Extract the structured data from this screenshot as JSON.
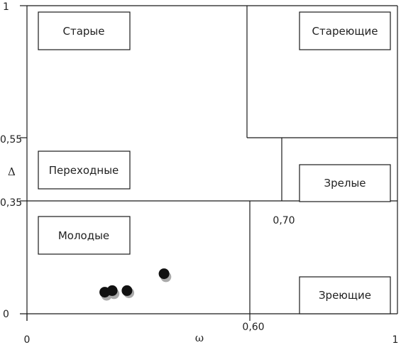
{
  "chart_data": {
    "type": "scatter",
    "title": "",
    "xlabel": "ω",
    "ylabel": "Δ",
    "xlim": [
      0,
      1
    ],
    "ylim": [
      0,
      1
    ],
    "x_ticks": [
      {
        "value": 0,
        "label": "0"
      },
      {
        "value": 0.6,
        "label": "0,60"
      },
      {
        "value": 1,
        "label": "1"
      }
    ],
    "y_ticks": [
      {
        "value": 0,
        "label": "0"
      },
      {
        "value": 0.35,
        "label": "0,35"
      },
      {
        "value": 0.55,
        "label": "0,55"
      },
      {
        "value": 1,
        "label": "1"
      }
    ],
    "threshold_annotations": [
      {
        "label": "0,70"
      }
    ],
    "regions": [
      {
        "label": "Старые"
      },
      {
        "label": "Стареющие"
      },
      {
        "label": "Переходные"
      },
      {
        "label": "Зрелые"
      },
      {
        "label": "Молодые"
      },
      {
        "label": "Зреющие"
      }
    ],
    "series": [
      {
        "color": "#111111",
        "points": [
          {
            "x": 0.21,
            "y": 0.07
          },
          {
            "x": 0.23,
            "y": 0.075
          },
          {
            "x": 0.27,
            "y": 0.075
          },
          {
            "x": 0.37,
            "y": 0.13
          }
        ]
      },
      {
        "color": "#aaaaaa",
        "points": [
          {
            "x": 0.215,
            "y": 0.06
          },
          {
            "x": 0.235,
            "y": 0.065
          },
          {
            "x": 0.275,
            "y": 0.068
          },
          {
            "x": 0.375,
            "y": 0.12
          }
        ]
      }
    ]
  }
}
